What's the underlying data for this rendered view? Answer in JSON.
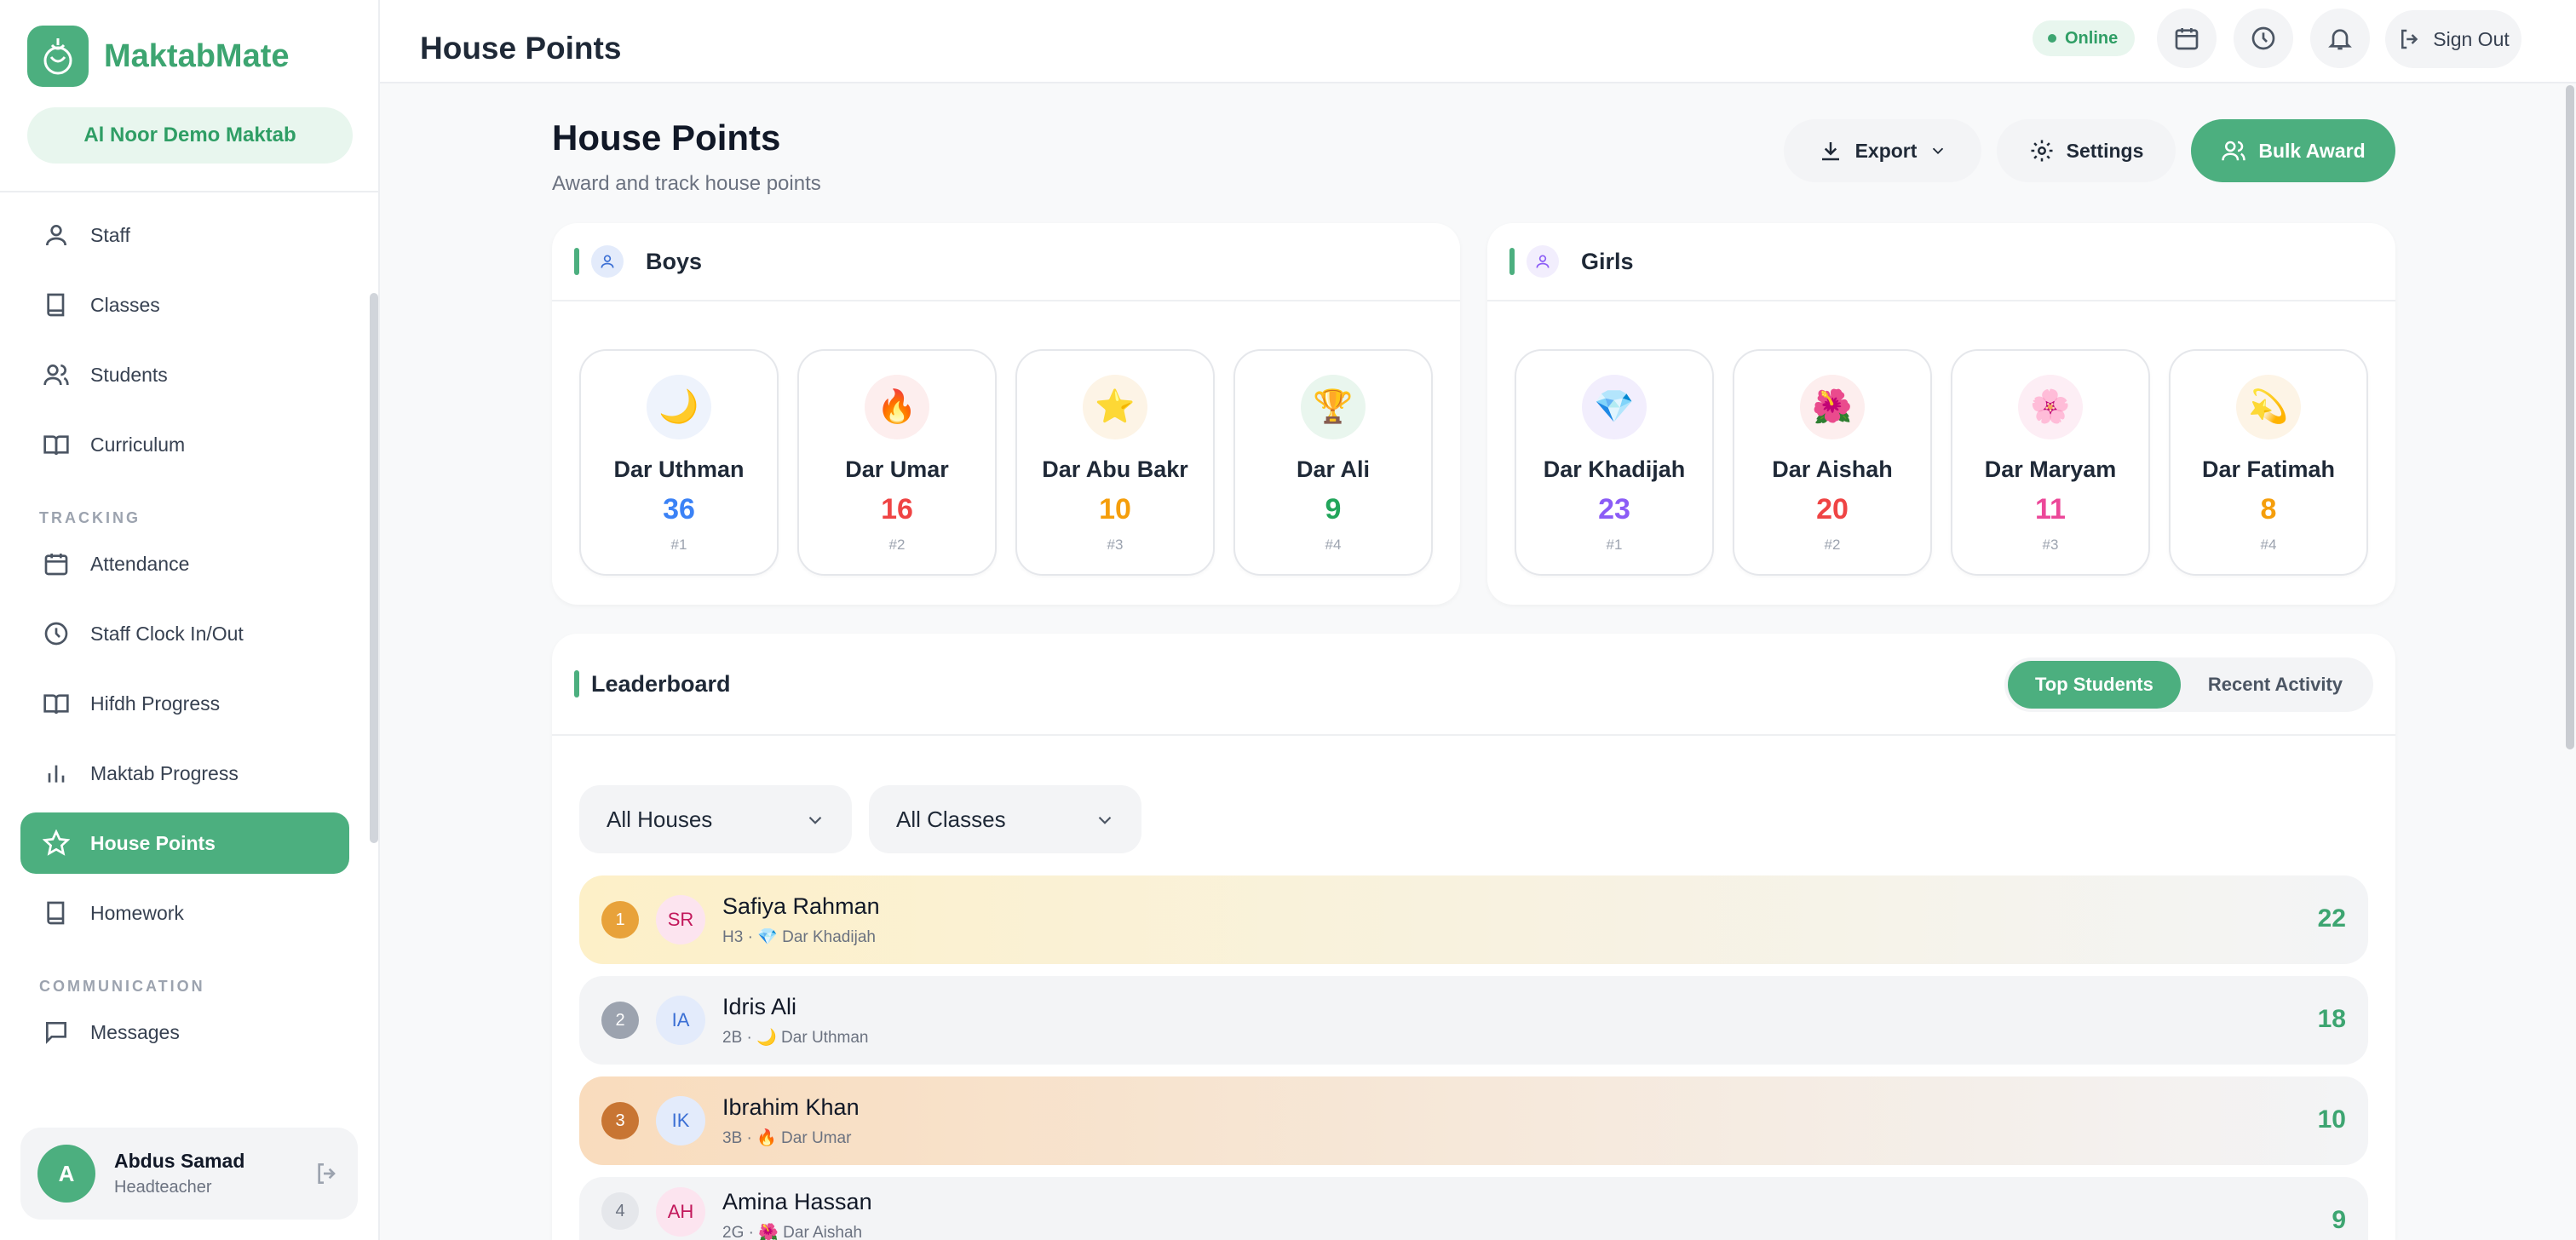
{
  "brand": {
    "name": "MaktabMate",
    "school": "Al Noor Demo Maktab",
    "accent": "#4caf7f"
  },
  "nav": {
    "items_top": [
      {
        "label": "Staff",
        "icon": "user-icon"
      },
      {
        "label": "Classes",
        "icon": "book-icon"
      },
      {
        "label": "Students",
        "icon": "users-icon"
      },
      {
        "label": "Curriculum",
        "icon": "open-book-icon"
      }
    ],
    "section_tracking": "TRACKING",
    "items_tracking": [
      {
        "label": "Attendance",
        "icon": "calendar-icon"
      },
      {
        "label": "Staff Clock In/Out",
        "icon": "clock-icon"
      },
      {
        "label": "Hifdh Progress",
        "icon": "open-book-icon"
      },
      {
        "label": "Maktab Progress",
        "icon": "bar-chart-icon"
      },
      {
        "label": "House Points",
        "icon": "star-icon",
        "active": true
      },
      {
        "label": "Homework",
        "icon": "book-icon"
      }
    ],
    "section_communication": "COMMUNICATION",
    "items_comm": [
      {
        "label": "Messages",
        "icon": "message-icon"
      }
    ]
  },
  "user": {
    "initial": "A",
    "name": "Abdus Samad",
    "role": "Headteacher"
  },
  "topbar": {
    "title": "House Points",
    "status": "Online",
    "signout": "Sign Out"
  },
  "page": {
    "title": "House Points",
    "subtitle": "Award and track house points",
    "export": "Export",
    "settings": "Settings",
    "bulk_award": "Bulk Award"
  },
  "boys": {
    "title": "Boys",
    "houses": [
      {
        "emoji": "🌙",
        "name": "Dar Uthman",
        "points": "36",
        "rank": "#1",
        "color": "#3b82f6",
        "bg": "#eef3fc"
      },
      {
        "emoji": "🔥",
        "name": "Dar Umar",
        "points": "16",
        "rank": "#2",
        "color": "#ef4444",
        "bg": "#fdeeee"
      },
      {
        "emoji": "⭐",
        "name": "Dar Abu Bakr",
        "points": "10",
        "rank": "#3",
        "color": "#f59e0b",
        "bg": "#fdf4e6"
      },
      {
        "emoji": "🏆",
        "name": "Dar Ali",
        "points": "9",
        "rank": "#4",
        "color": "#22a55b",
        "bg": "#e9f6ee"
      }
    ]
  },
  "girls": {
    "title": "Girls",
    "houses": [
      {
        "emoji": "💎",
        "name": "Dar Khadijah",
        "points": "23",
        "rank": "#1",
        "color": "#8b5cf6",
        "bg": "#f2eefd"
      },
      {
        "emoji": "🌺",
        "name": "Dar Aishah",
        "points": "20",
        "rank": "#2",
        "color": "#ef4444",
        "bg": "#fdeeee"
      },
      {
        "emoji": "🌸",
        "name": "Dar Maryam",
        "points": "11",
        "rank": "#3",
        "color": "#ec4899",
        "bg": "#fdeef5"
      },
      {
        "emoji": "💫",
        "name": "Dar Fatimah",
        "points": "8",
        "rank": "#4",
        "color": "#f59e0b",
        "bg": "#fdf4e6"
      }
    ]
  },
  "leaderboard": {
    "title": "Leaderboard",
    "tabs": [
      {
        "label": "Top Students",
        "active": true
      },
      {
        "label": "Recent Activity"
      }
    ],
    "filters": {
      "house": "All Houses",
      "class": "All Classes"
    },
    "rows": [
      {
        "rank": "1",
        "initials": "SR",
        "name": "Safiya Rahman",
        "sub": "H3 · 💎 Dar Khadijah",
        "points": "22",
        "rank_color": "#e8a23a",
        "init_color": "#c2185b",
        "init_bg": "#fce4ef"
      },
      {
        "rank": "2",
        "initials": "IA",
        "name": "Idris Ali",
        "sub": "2B · 🌙 Dar Uthman",
        "points": "18",
        "rank_color": "#9ca3af",
        "init_color": "#3b6fd4",
        "init_bg": "#e3ebfb"
      },
      {
        "rank": "3",
        "initials": "IK",
        "name": "Ibrahim Khan",
        "sub": "3B · 🔥 Dar Umar",
        "points": "10",
        "rank_color": "#c87533",
        "init_color": "#3b6fd4",
        "init_bg": "#e3ebfb"
      },
      {
        "rank": "4",
        "initials": "AH",
        "name": "Amina Hassan",
        "sub": "2G · 🌺 Dar Aishah",
        "points": "9",
        "rank_color": "#e5e7eb",
        "init_color": "#c2185b",
        "init_bg": "#fce4ef"
      }
    ]
  }
}
